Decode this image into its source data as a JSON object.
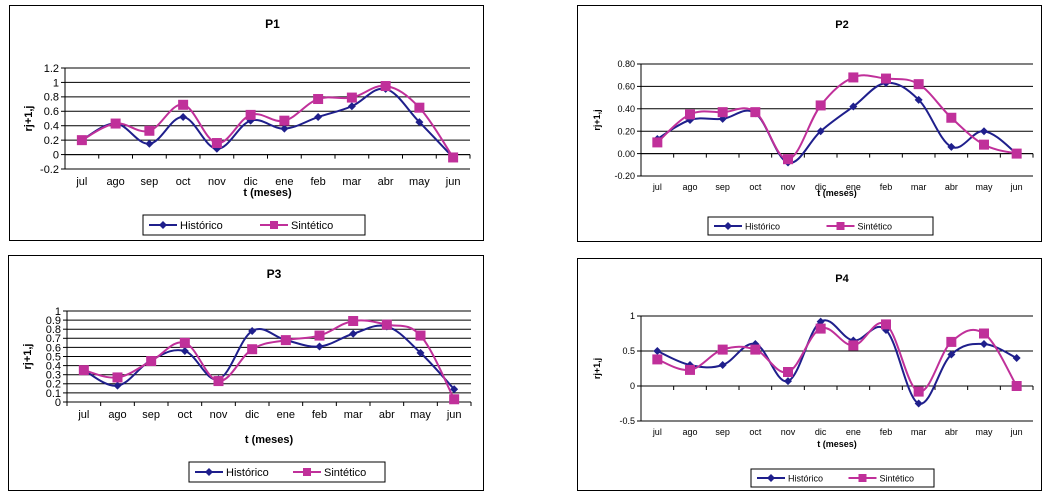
{
  "legend_labels": {
    "historico": "Histórico",
    "sintetico": "Sintético"
  },
  "colors": {
    "historico": "#1f1f8c",
    "sintetico": "#c0309a",
    "grid": "#000000"
  },
  "chart_data": [
    {
      "type": "line",
      "title": "P1",
      "xlabel": "t (meses)",
      "ylabel": "rj+1,j",
      "categories": [
        "jul",
        "ago",
        "sep",
        "oct",
        "nov",
        "dic",
        "ene",
        "feb",
        "mar",
        "abr",
        "may",
        "jun"
      ],
      "ylim": [
        -0.2,
        1.2
      ],
      "yticks": [
        "-0.2",
        "0",
        "0.2",
        "0.4",
        "0.6",
        "0.8",
        "1",
        "1.2"
      ],
      "ytick_values": [
        -0.2,
        0,
        0.2,
        0.4,
        0.6,
        0.8,
        1,
        1.2
      ],
      "grid": true,
      "legend": "bottom",
      "series": [
        {
          "name": "Histórico",
          "values": [
            0.2,
            0.43,
            0.15,
            0.52,
            0.08,
            0.47,
            0.36,
            0.52,
            0.67,
            0.91,
            0.45,
            -0.04
          ]
        },
        {
          "name": "Sintético",
          "values": [
            0.2,
            0.43,
            0.33,
            0.69,
            0.16,
            0.55,
            0.47,
            0.77,
            0.79,
            0.95,
            0.65,
            -0.04
          ]
        }
      ]
    },
    {
      "type": "line",
      "title": "P2",
      "xlabel": "t (meses)",
      "ylabel": "rj+1,j",
      "categories": [
        "jul",
        "ago",
        "sep",
        "oct",
        "nov",
        "dic",
        "ene",
        "feb",
        "mar",
        "abr",
        "may",
        "jun"
      ],
      "ylim": [
        -0.2,
        0.8
      ],
      "yticks": [
        "-0.20",
        "0.00",
        "0.20",
        "0.40",
        "0.60",
        "0.80"
      ],
      "ytick_values": [
        -0.2,
        0,
        0.2,
        0.4,
        0.6,
        0.8
      ],
      "grid": true,
      "legend": "bottom",
      "series": [
        {
          "name": "Histórico",
          "values": [
            0.13,
            0.3,
            0.31,
            0.36,
            -0.08,
            0.2,
            0.42,
            0.63,
            0.48,
            0.06,
            0.2,
            0.0
          ]
        },
        {
          "name": "Sintético",
          "values": [
            0.1,
            0.35,
            0.37,
            0.37,
            -0.05,
            0.43,
            0.68,
            0.67,
            0.62,
            0.32,
            0.08,
            0.0
          ]
        }
      ]
    },
    {
      "type": "line",
      "title": "P3",
      "xlabel": "t (meses)",
      "ylabel": "rj+1,j",
      "categories": [
        "jul",
        "ago",
        "sep",
        "oct",
        "nov",
        "dic",
        "ene",
        "feb",
        "mar",
        "abr",
        "may",
        "jun"
      ],
      "ylim": [
        0,
        1
      ],
      "yticks": [
        "0",
        "0.1",
        "0.2",
        "0.3",
        "0.4",
        "0.5",
        "0.6",
        "0.7",
        "0.8",
        "0.9",
        "1"
      ],
      "ytick_values": [
        0,
        0.1,
        0.2,
        0.3,
        0.4,
        0.5,
        0.6,
        0.7,
        0.8,
        0.9,
        1
      ],
      "grid": true,
      "legend": "bottom",
      "series": [
        {
          "name": "Histórico",
          "values": [
            0.35,
            0.18,
            0.46,
            0.56,
            0.25,
            0.78,
            0.68,
            0.61,
            0.75,
            0.83,
            0.54,
            0.14
          ]
        },
        {
          "name": "Sintético",
          "values": [
            0.35,
            0.27,
            0.45,
            0.65,
            0.23,
            0.58,
            0.68,
            0.73,
            0.89,
            0.85,
            0.73,
            0.03
          ]
        }
      ]
    },
    {
      "type": "line",
      "title": "P4",
      "xlabel": "t (meses)",
      "ylabel": "rj+1,j",
      "categories": [
        "jul",
        "ago",
        "sep",
        "oct",
        "nov",
        "dic",
        "ene",
        "feb",
        "mar",
        "abr",
        "may",
        "jun"
      ],
      "ylim": [
        -0.5,
        1
      ],
      "yticks": [
        "-0.5",
        "0",
        "0.5",
        "1"
      ],
      "ytick_values": [
        -0.5,
        0,
        0.5,
        1
      ],
      "grid": true,
      "legend": "bottom",
      "series": [
        {
          "name": "Histórico",
          "values": [
            0.5,
            0.3,
            0.3,
            0.6,
            0.07,
            0.92,
            0.65,
            0.8,
            -0.25,
            0.45,
            0.6,
            0.4
          ]
        },
        {
          "name": "Sintético",
          "values": [
            0.38,
            0.23,
            0.52,
            0.52,
            0.2,
            0.82,
            0.58,
            0.88,
            -0.08,
            0.63,
            0.75,
            0.0
          ]
        }
      ]
    }
  ]
}
